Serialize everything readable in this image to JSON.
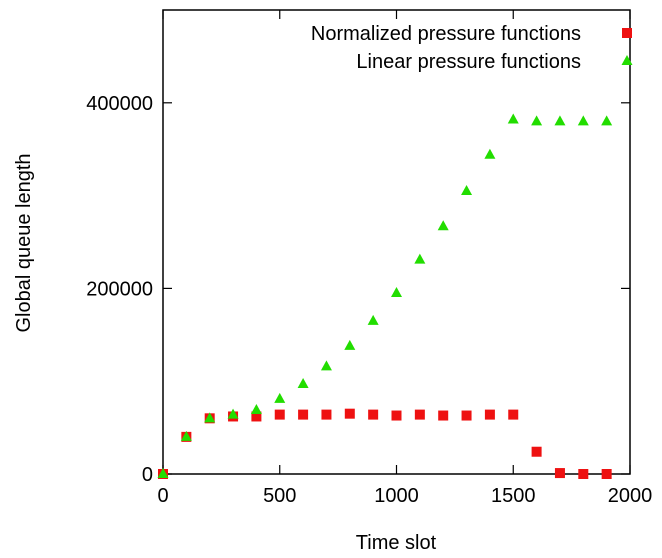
{
  "chart_data": {
    "type": "scatter",
    "title": "",
    "xlabel": "Time slot",
    "ylabel": "Global queue length",
    "xlim": [
      0,
      2000
    ],
    "ylim": [
      0,
      500000
    ],
    "xticks": [
      0,
      500,
      1000,
      1500,
      2000
    ],
    "yticks": [
      0,
      200000,
      400000
    ],
    "xtick_labels": [
      "0",
      "500",
      "1000",
      "1500",
      "2000"
    ],
    "ytick_labels": [
      "0",
      "200000",
      "400000"
    ],
    "grid": false,
    "legend_position": "top-right",
    "series": [
      {
        "name": "Normalized pressure functions",
        "marker": "square",
        "color": "#ee1111",
        "points": [
          [
            0,
            0
          ],
          [
            100,
            40000
          ],
          [
            200,
            60000
          ],
          [
            300,
            62000
          ],
          [
            400,
            62000
          ],
          [
            500,
            64000
          ],
          [
            600,
            64000
          ],
          [
            700,
            64000
          ],
          [
            800,
            65000
          ],
          [
            900,
            64000
          ],
          [
            1000,
            63000
          ],
          [
            1100,
            64000
          ],
          [
            1200,
            63000
          ],
          [
            1300,
            63000
          ],
          [
            1400,
            64000
          ],
          [
            1500,
            64000
          ],
          [
            1600,
            24000
          ],
          [
            1700,
            1000
          ],
          [
            1800,
            0
          ],
          [
            1900,
            0
          ]
        ]
      },
      {
        "name": "Linear pressure functions",
        "marker": "triangle",
        "color": "#22dd00",
        "points": [
          [
            0,
            0
          ],
          [
            100,
            40000
          ],
          [
            200,
            60000
          ],
          [
            300,
            64000
          ],
          [
            400,
            69000
          ],
          [
            500,
            81000
          ],
          [
            600,
            97000
          ],
          [
            700,
            116000
          ],
          [
            800,
            138000
          ],
          [
            900,
            165000
          ],
          [
            1000,
            195000
          ],
          [
            1100,
            231000
          ],
          [
            1200,
            267000
          ],
          [
            1300,
            305000
          ],
          [
            1400,
            344000
          ],
          [
            1500,
            382000
          ],
          [
            1600,
            380000
          ],
          [
            1700,
            380000
          ],
          [
            1800,
            380000
          ],
          [
            1900,
            380000
          ]
        ]
      }
    ]
  }
}
